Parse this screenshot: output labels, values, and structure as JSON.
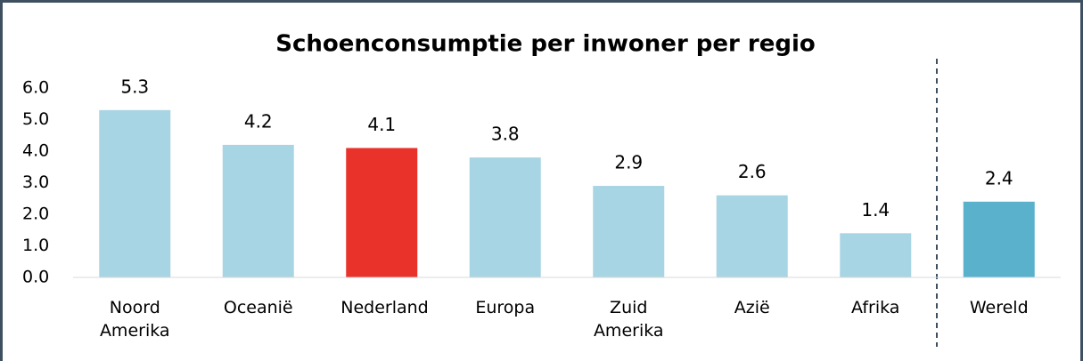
{
  "chart_data": {
    "type": "bar",
    "title": "Schoenconsumptie per inwoner per regio",
    "categories": [
      "Noord Amerika",
      "Oceanië",
      "Nederland",
      "Europa",
      "Zuid Amerika",
      "Azië",
      "Afrika",
      "Wereld"
    ],
    "values": [
      5.3,
      4.2,
      4.1,
      3.8,
      2.9,
      2.6,
      1.4,
      2.4
    ],
    "colors": [
      "#a8d5e3",
      "#a8d5e3",
      "#e8322a",
      "#a8d5e3",
      "#a8d5e3",
      "#a8d5e3",
      "#a8d5e3",
      "#5ab1cc"
    ],
    "ylim": [
      0,
      6
    ],
    "yticks": [
      {
        "value": 0,
        "label": "0.0"
      },
      {
        "value": 1,
        "label": "1.0"
      },
      {
        "value": 2,
        "label": "2.0"
      },
      {
        "value": 3,
        "label": "3.0"
      },
      {
        "value": 4,
        "label": "4.0"
      },
      {
        "value": 5,
        "label": "5.0"
      },
      {
        "value": 6,
        "label": "6.0"
      }
    ],
    "grid": false
  }
}
